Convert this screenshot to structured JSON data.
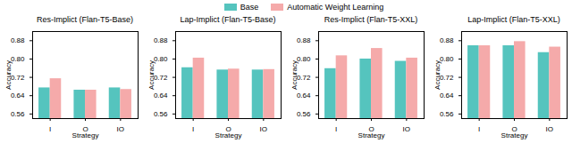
{
  "chart_data": [
    {
      "type": "bar",
      "title": "Res-Implict (Flan-T5-Base)",
      "categories": [
        "I",
        "O",
        "IO"
      ],
      "series": [
        {
          "name": "Base",
          "color": "#55C4BE",
          "values": [
            0.674,
            0.664,
            0.674
          ]
        },
        {
          "name": "Automatic Weight Learning",
          "color": "#F5AAAA",
          "values": [
            0.714,
            0.664,
            0.667
          ]
        }
      ],
      "xlabel": "Strategy",
      "ylabel": "Accuracy",
      "ylim": [
        0.54,
        0.92
      ],
      "yticks": [
        0.56,
        0.64,
        0.72,
        {
          "value": 0.8,
          "label": "0.80"
        },
        0.88
      ],
      "grid": false,
      "legend": "upper center"
    },
    {
      "type": "bar",
      "title": "Lap-Implict (Flan-T5-Base)",
      "categories": [
        "I",
        "O",
        "IO"
      ],
      "series": [
        {
          "name": "Base",
          "color": "#55C4BE",
          "values": [
            0.762,
            0.752,
            0.752
          ]
        },
        {
          "name": "Automatic Weight Learning",
          "color": "#F5AAAA",
          "values": [
            0.804,
            0.756,
            0.754
          ]
        }
      ],
      "xlabel": "Strategy",
      "ylabel": "Accuracy",
      "ylim": [
        0.54,
        0.92
      ],
      "yticks": [
        0.56,
        0.64,
        0.72,
        {
          "value": 0.8,
          "label": "0.80"
        },
        0.88
      ],
      "grid": false,
      "legend": "upper center"
    },
    {
      "type": "bar",
      "title": "Res-Implict (Flan-T5-XXL)",
      "categories": [
        "I",
        "O",
        "IO"
      ],
      "series": [
        {
          "name": "Base",
          "color": "#55C4BE",
          "values": [
            0.758,
            0.8,
            0.79
          ]
        },
        {
          "name": "Automatic Weight Learning",
          "color": "#F5AAAA",
          "values": [
            0.814,
            0.846,
            0.804
          ]
        }
      ],
      "xlabel": "Strategy",
      "ylabel": "Accuracy",
      "ylim": [
        0.54,
        0.92
      ],
      "yticks": [
        0.56,
        0.64,
        0.72,
        {
          "value": 0.8,
          "label": "0.80"
        },
        0.88
      ],
      "grid": false,
      "legend": "upper center"
    },
    {
      "type": "bar",
      "title": "Lap-Implict (Flan-T5-XXL)",
      "categories": [
        "I",
        "O",
        "IO"
      ],
      "series": [
        {
          "name": "Base",
          "color": "#55C4BE",
          "values": [
            0.858,
            0.858,
            0.828
          ]
        },
        {
          "name": "Automatic Weight Learning",
          "color": "#F5AAAA",
          "values": [
            0.858,
            0.876,
            0.852
          ]
        }
      ],
      "xlabel": "Strategy",
      "ylabel": "Accuracy",
      "ylim": [
        0.54,
        0.92
      ],
      "yticks": [
        0.56,
        0.64,
        0.72,
        {
          "value": 0.8,
          "label": "0.80"
        },
        0.88
      ],
      "grid": false,
      "legend": "upper center"
    }
  ]
}
